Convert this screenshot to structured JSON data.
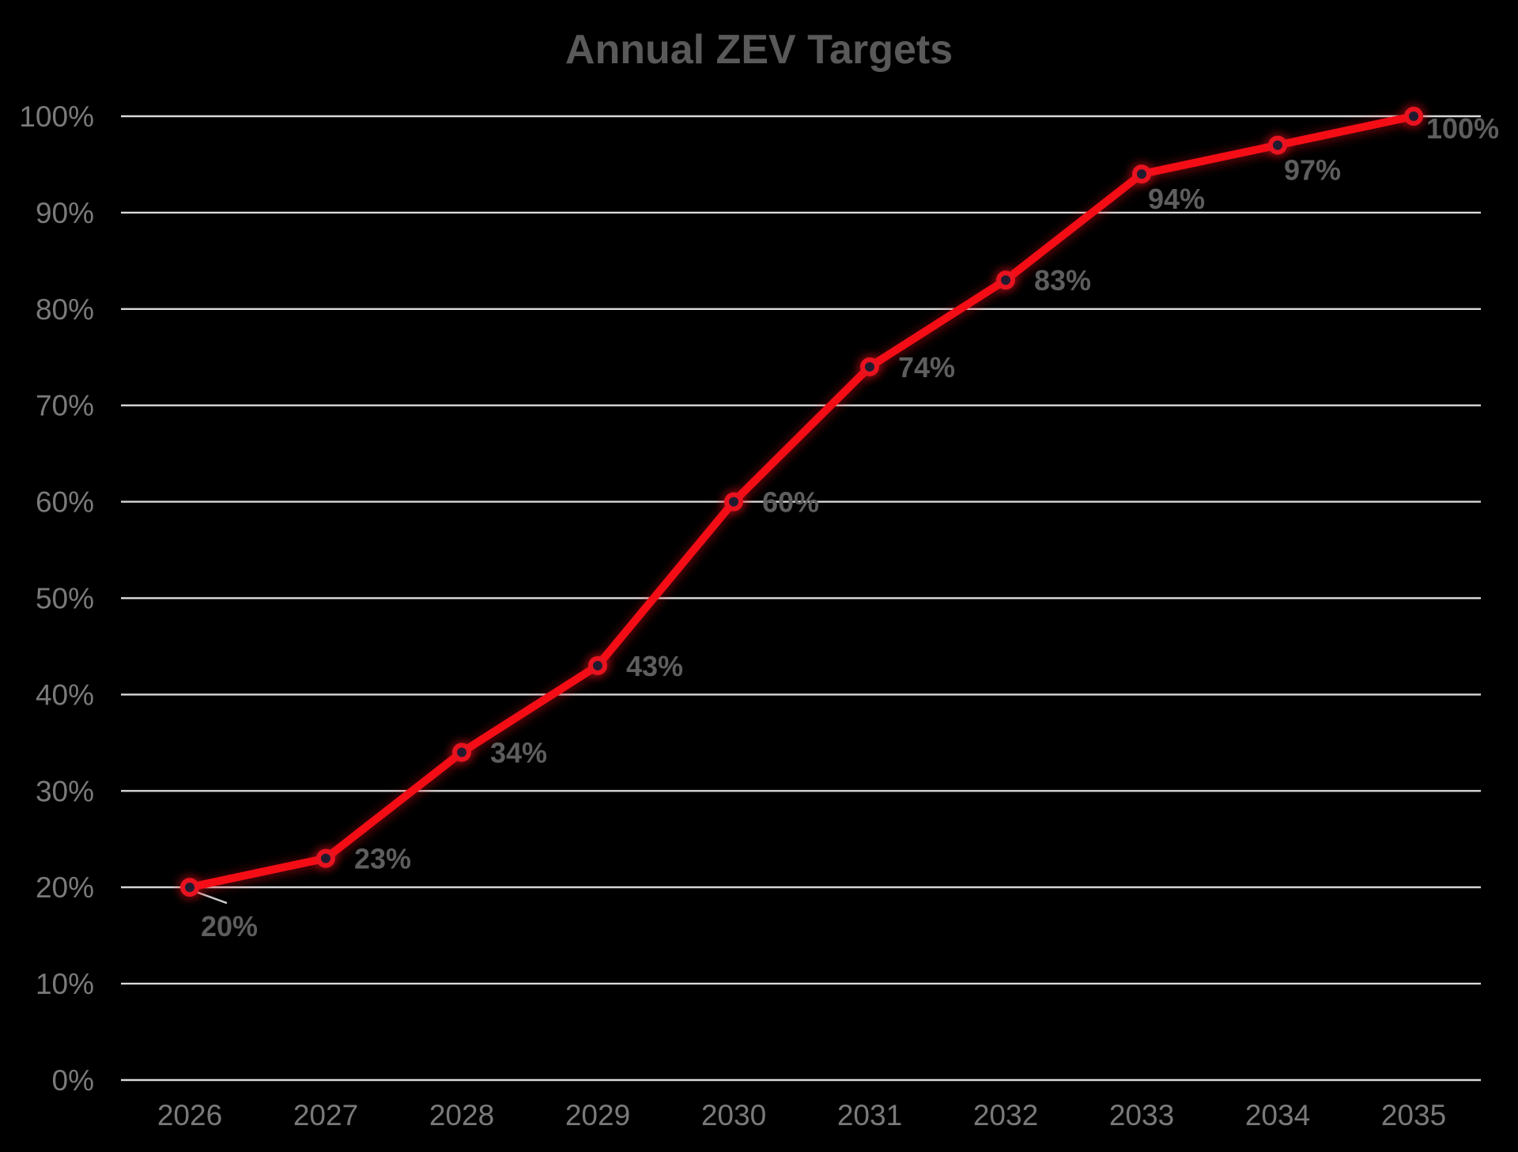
{
  "chart_data": {
    "type": "line",
    "title": "Annual ZEV Targets",
    "categories": [
      "2026",
      "2027",
      "2028",
      "2029",
      "2030",
      "2031",
      "2032",
      "2033",
      "2034",
      "2035"
    ],
    "series": [
      {
        "name": "Annual ZEV Targets",
        "values": [
          20,
          23,
          34,
          43,
          60,
          74,
          83,
          94,
          97,
          100
        ]
      }
    ],
    "data_labels": [
      "20%",
      "23%",
      "34%",
      "43%",
      "60%",
      "74%",
      "83%",
      "94%",
      "97%",
      "100%"
    ],
    "label_positions": [
      "below-leader",
      "right",
      "right",
      "right",
      "right",
      "right",
      "right",
      "below-right",
      "below-right",
      "right-low"
    ],
    "y_tick_labels": [
      "0%",
      "10%",
      "20%",
      "30%",
      "40%",
      "50%",
      "60%",
      "70%",
      "80%",
      "90%",
      "100%"
    ],
    "y_tick_values": [
      0,
      10,
      20,
      30,
      40,
      50,
      60,
      70,
      80,
      90,
      100
    ],
    "ylim": [
      0,
      100
    ],
    "xlabel": "",
    "ylabel": "",
    "grid": "horizontal",
    "legend_position": "none",
    "colors": {
      "background": "#000000",
      "line": "#f50d16",
      "marker_fill": "#221b30",
      "marker_ring": "#e8131f",
      "marker_glow": "rgba(240,20,30,0.40)",
      "gridline": "#d9d9d9",
      "axis_text": "#7a7a7a",
      "data_label_text": "#5e5e5e",
      "title_text": "#595959",
      "leader_line": "#c9c9c9"
    }
  }
}
